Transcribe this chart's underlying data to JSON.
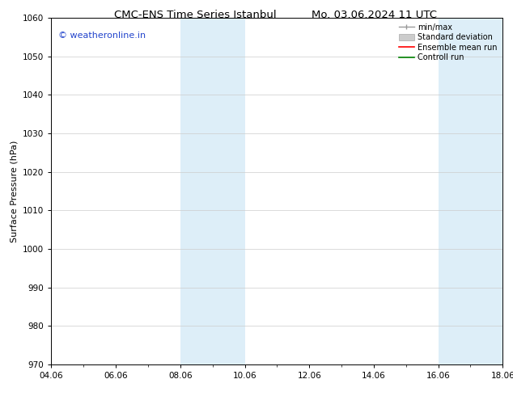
{
  "title_left": "CMC-ENS Time Series Istanbul",
  "title_right": "Mo. 03.06.2024 11 UTC",
  "ylabel": "Surface Pressure (hPa)",
  "ylim": [
    970,
    1060
  ],
  "yticks": [
    970,
    980,
    990,
    1000,
    1010,
    1020,
    1030,
    1040,
    1050,
    1060
  ],
  "xtick_labels": [
    "04.06",
    "06.06",
    "08.06",
    "10.06",
    "12.06",
    "14.06",
    "16.06",
    "18.06"
  ],
  "xtick_positions": [
    0,
    2,
    4,
    6,
    8,
    10,
    12,
    14
  ],
  "shaded_bands": [
    {
      "xstart": 4,
      "xend": 6
    },
    {
      "xstart": 12,
      "xend": 14
    }
  ],
  "shaded_color": "#ddeef8",
  "watermark_text": "© weatheronline.in",
  "watermark_color": "#2244cc",
  "bg_color": "#ffffff",
  "grid_color": "#cccccc",
  "title_fontsize": 9.5,
  "tick_fontsize": 7.5,
  "ylabel_fontsize": 8,
  "watermark_fontsize": 8,
  "legend_fontsize": 7
}
